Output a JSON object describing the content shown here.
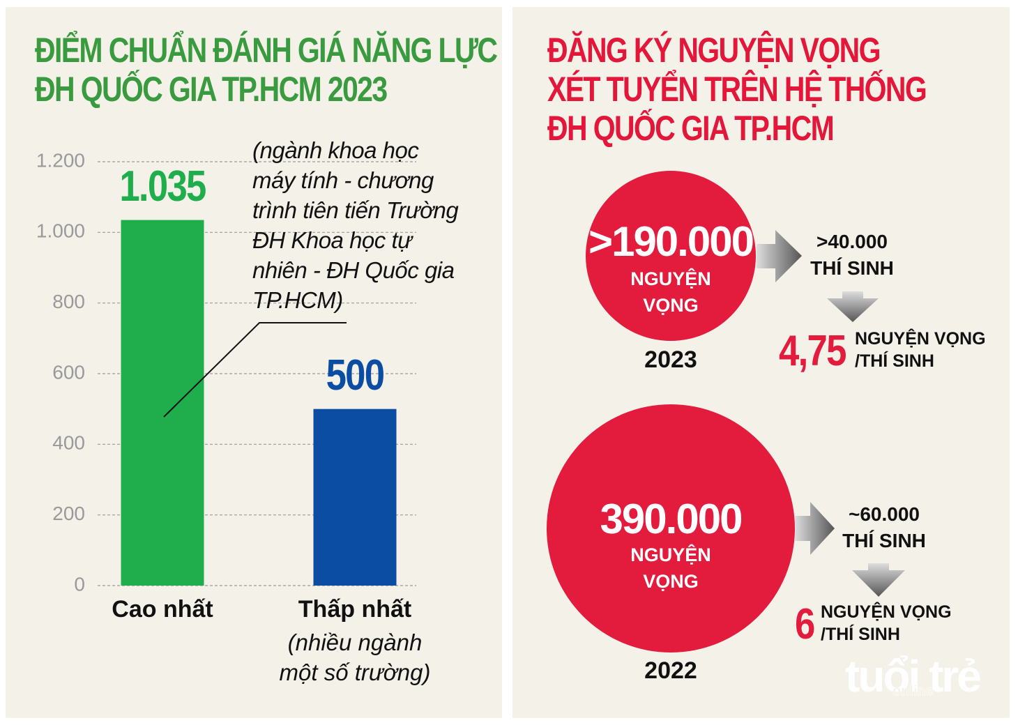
{
  "chart_data": {
    "type": "bar",
    "title": [
      "ĐIỂM CHUẨN ĐÁNH GIÁ NĂNG LỰC",
      "ĐH QUỐC GIA TP.HCM 2023"
    ],
    "categories": [
      "Cao nhất",
      "Thấp nhất"
    ],
    "category_notes": [
      null,
      "(nhiều ngành một số trường)"
    ],
    "annotation": "(ngành khoa học máy tính - chương trình tiên tiến Trường ĐH Khoa học tự nhiên - ĐH Quốc gia TP.HCM)",
    "values": [
      1035,
      500
    ],
    "value_labels": [
      "1.035",
      "500"
    ],
    "colors": [
      "#1fae4b",
      "#0a4da2"
    ],
    "ylim": [
      0,
      1200
    ],
    "yticks": [
      0,
      200,
      400,
      600,
      800,
      {
        "value": 1000,
        "label": "1.000"
      },
      {
        "value": 1200,
        "label": "1.200"
      }
    ],
    "grid": true
  },
  "infographic": {
    "title": [
      "ĐĂNG KÝ NGUYỆN VỌNG",
      "XÉT TUYỂN TRÊN HỆ THỐNG",
      "ĐH QUỐC GIA TP.HCM"
    ],
    "years": [
      {
        "year": "2023",
        "wishes": ">190.000",
        "wishes_unit": "NGUYỆN VỌNG",
        "candidates": ">40.000",
        "candidates_unit": "THÍ SINH",
        "ratio": "4,75",
        "ratio_unit": "NGUYỆN VỌNG /THÍ SINH"
      },
      {
        "year": "2022",
        "wishes": "390.000",
        "wishes_unit": "NGUYỆN VỌNG",
        "candidates": "~60.000",
        "candidates_unit": "THÍ SINH",
        "ratio": "6",
        "ratio_unit": "NGUYỆN VỌNG /THÍ SINH"
      }
    ],
    "watermark": {
      "brand": "tuổi trẻ",
      "sub": "online"
    }
  }
}
